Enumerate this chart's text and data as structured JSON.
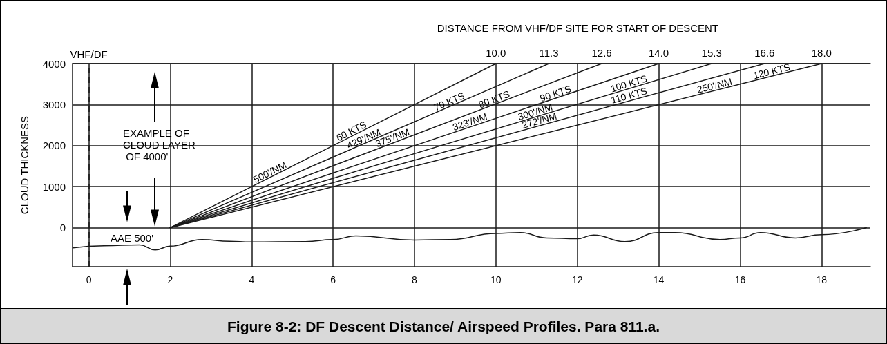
{
  "chart_data": {
    "type": "line",
    "title": "Figure 8-2: DF Descent Distance/ Airspeed Profiles. Para 811.a.",
    "x2label": "DISTANCE FROM VHF/DF SITE FOR START OF DESCENT",
    "ylabel": "CLOUD THICKNESS",
    "xlim": [
      -0.4,
      19.2
    ],
    "xticks": [
      0,
      2,
      4,
      6,
      8,
      10,
      12,
      14,
      16,
      18
    ],
    "x2lim": [
      -0.4,
      19.2
    ],
    "x2ticks": [
      {
        "value": 10,
        "label": "10.0"
      },
      {
        "value": 11.3,
        "label": "11.3"
      },
      {
        "value": 12.6,
        "label": "12.6"
      },
      {
        "value": 14,
        "label": "14.0"
      },
      {
        "value": 15.3,
        "label": "15.3"
      },
      {
        "value": 16.6,
        "label": "16.6"
      },
      {
        "value": 18,
        "label": "18.0"
      }
    ],
    "ylim": [
      -950,
      4000
    ],
    "yticks": [
      0,
      1000,
      2000,
      3000,
      4000
    ],
    "grid": true,
    "marker": "none",
    "line_style": "solid",
    "ref_lines": [
      {
        "axis": "x",
        "value": 0,
        "label": "VHF/DF",
        "line_style": "dashed",
        "color": "#1a1a1a"
      }
    ],
    "series": [
      {
        "color": "#1a1a1a",
        "x": [
          2,
          10
        ],
        "values": [
          0,
          4000
        ]
      },
      {
        "color": "#1a1a1a",
        "x": [
          2,
          11.3
        ],
        "values": [
          0,
          4000
        ]
      },
      {
        "color": "#1a1a1a",
        "x": [
          2,
          12.6
        ],
        "values": [
          0,
          4000
        ]
      },
      {
        "color": "#1a1a1a",
        "x": [
          2,
          14
        ],
        "values": [
          0,
          4000
        ]
      },
      {
        "color": "#1a1a1a",
        "x": [
          2,
          15.3
        ],
        "values": [
          0,
          4000
        ]
      },
      {
        "color": "#1a1a1a",
        "x": [
          2,
          16.6
        ],
        "values": [
          0,
          4000
        ]
      },
      {
        "color": "#1a1a1a",
        "x": [
          2,
          18
        ],
        "values": [
          0,
          4000
        ]
      },
      {
        "color": "#1a1a1a",
        "x": [
          -0.39,
          0.37,
          1.25,
          1.63,
          2,
          2.78,
          3.46,
          3.97,
          5.32,
          6,
          6.56,
          8,
          8.88,
          10,
          10.6,
          11.25,
          12,
          12.4,
          13.17,
          14,
          14.4,
          15.5,
          16,
          16.5,
          17.36,
          18,
          19.1
        ],
        "values": [
          -490,
          -440,
          -420,
          -540,
          -450,
          -290,
          -330,
          -350,
          -340,
          -290,
          -200,
          -300,
          -290,
          -140,
          -120,
          -250,
          -270,
          -180,
          -340,
          -120,
          -120,
          -290,
          -250,
          -120,
          -250,
          -170,
          0
        ]
      }
    ],
    "annotations": [
      {
        "text": "500'/NM",
        "x": 4.5,
        "y": 1250
      },
      {
        "text": "60 KTS",
        "x": 6.5,
        "y": 2250
      },
      {
        "text": "429'/NM",
        "x": 6.8,
        "y": 2060
      },
      {
        "text": "375'/NM",
        "x": 7.5,
        "y": 2080
      },
      {
        "text": "70 KTS",
        "x": 8.9,
        "y": 2970
      },
      {
        "text": "80 KTS",
        "x": 10,
        "y": 3020
      },
      {
        "text": "323'/NM",
        "x": 9.4,
        "y": 2470
      },
      {
        "text": "90 KTS",
        "x": 11.5,
        "y": 3160
      },
      {
        "text": "300'/NM",
        "x": 11,
        "y": 2710
      },
      {
        "text": "272'/NM",
        "x": 11.1,
        "y": 2500
      },
      {
        "text": "100 KTS",
        "x": 13.3,
        "y": 3400
      },
      {
        "text": "110 KTS",
        "x": 13.3,
        "y": 3110
      },
      {
        "text": "250'/NM",
        "x": 15.4,
        "y": 3350
      },
      {
        "text": "120 KTS",
        "x": 16.8,
        "y": 3700
      },
      "EXAMPLE OF CLOUD LAYER OF 4000'",
      "AAE 500'"
    ]
  }
}
